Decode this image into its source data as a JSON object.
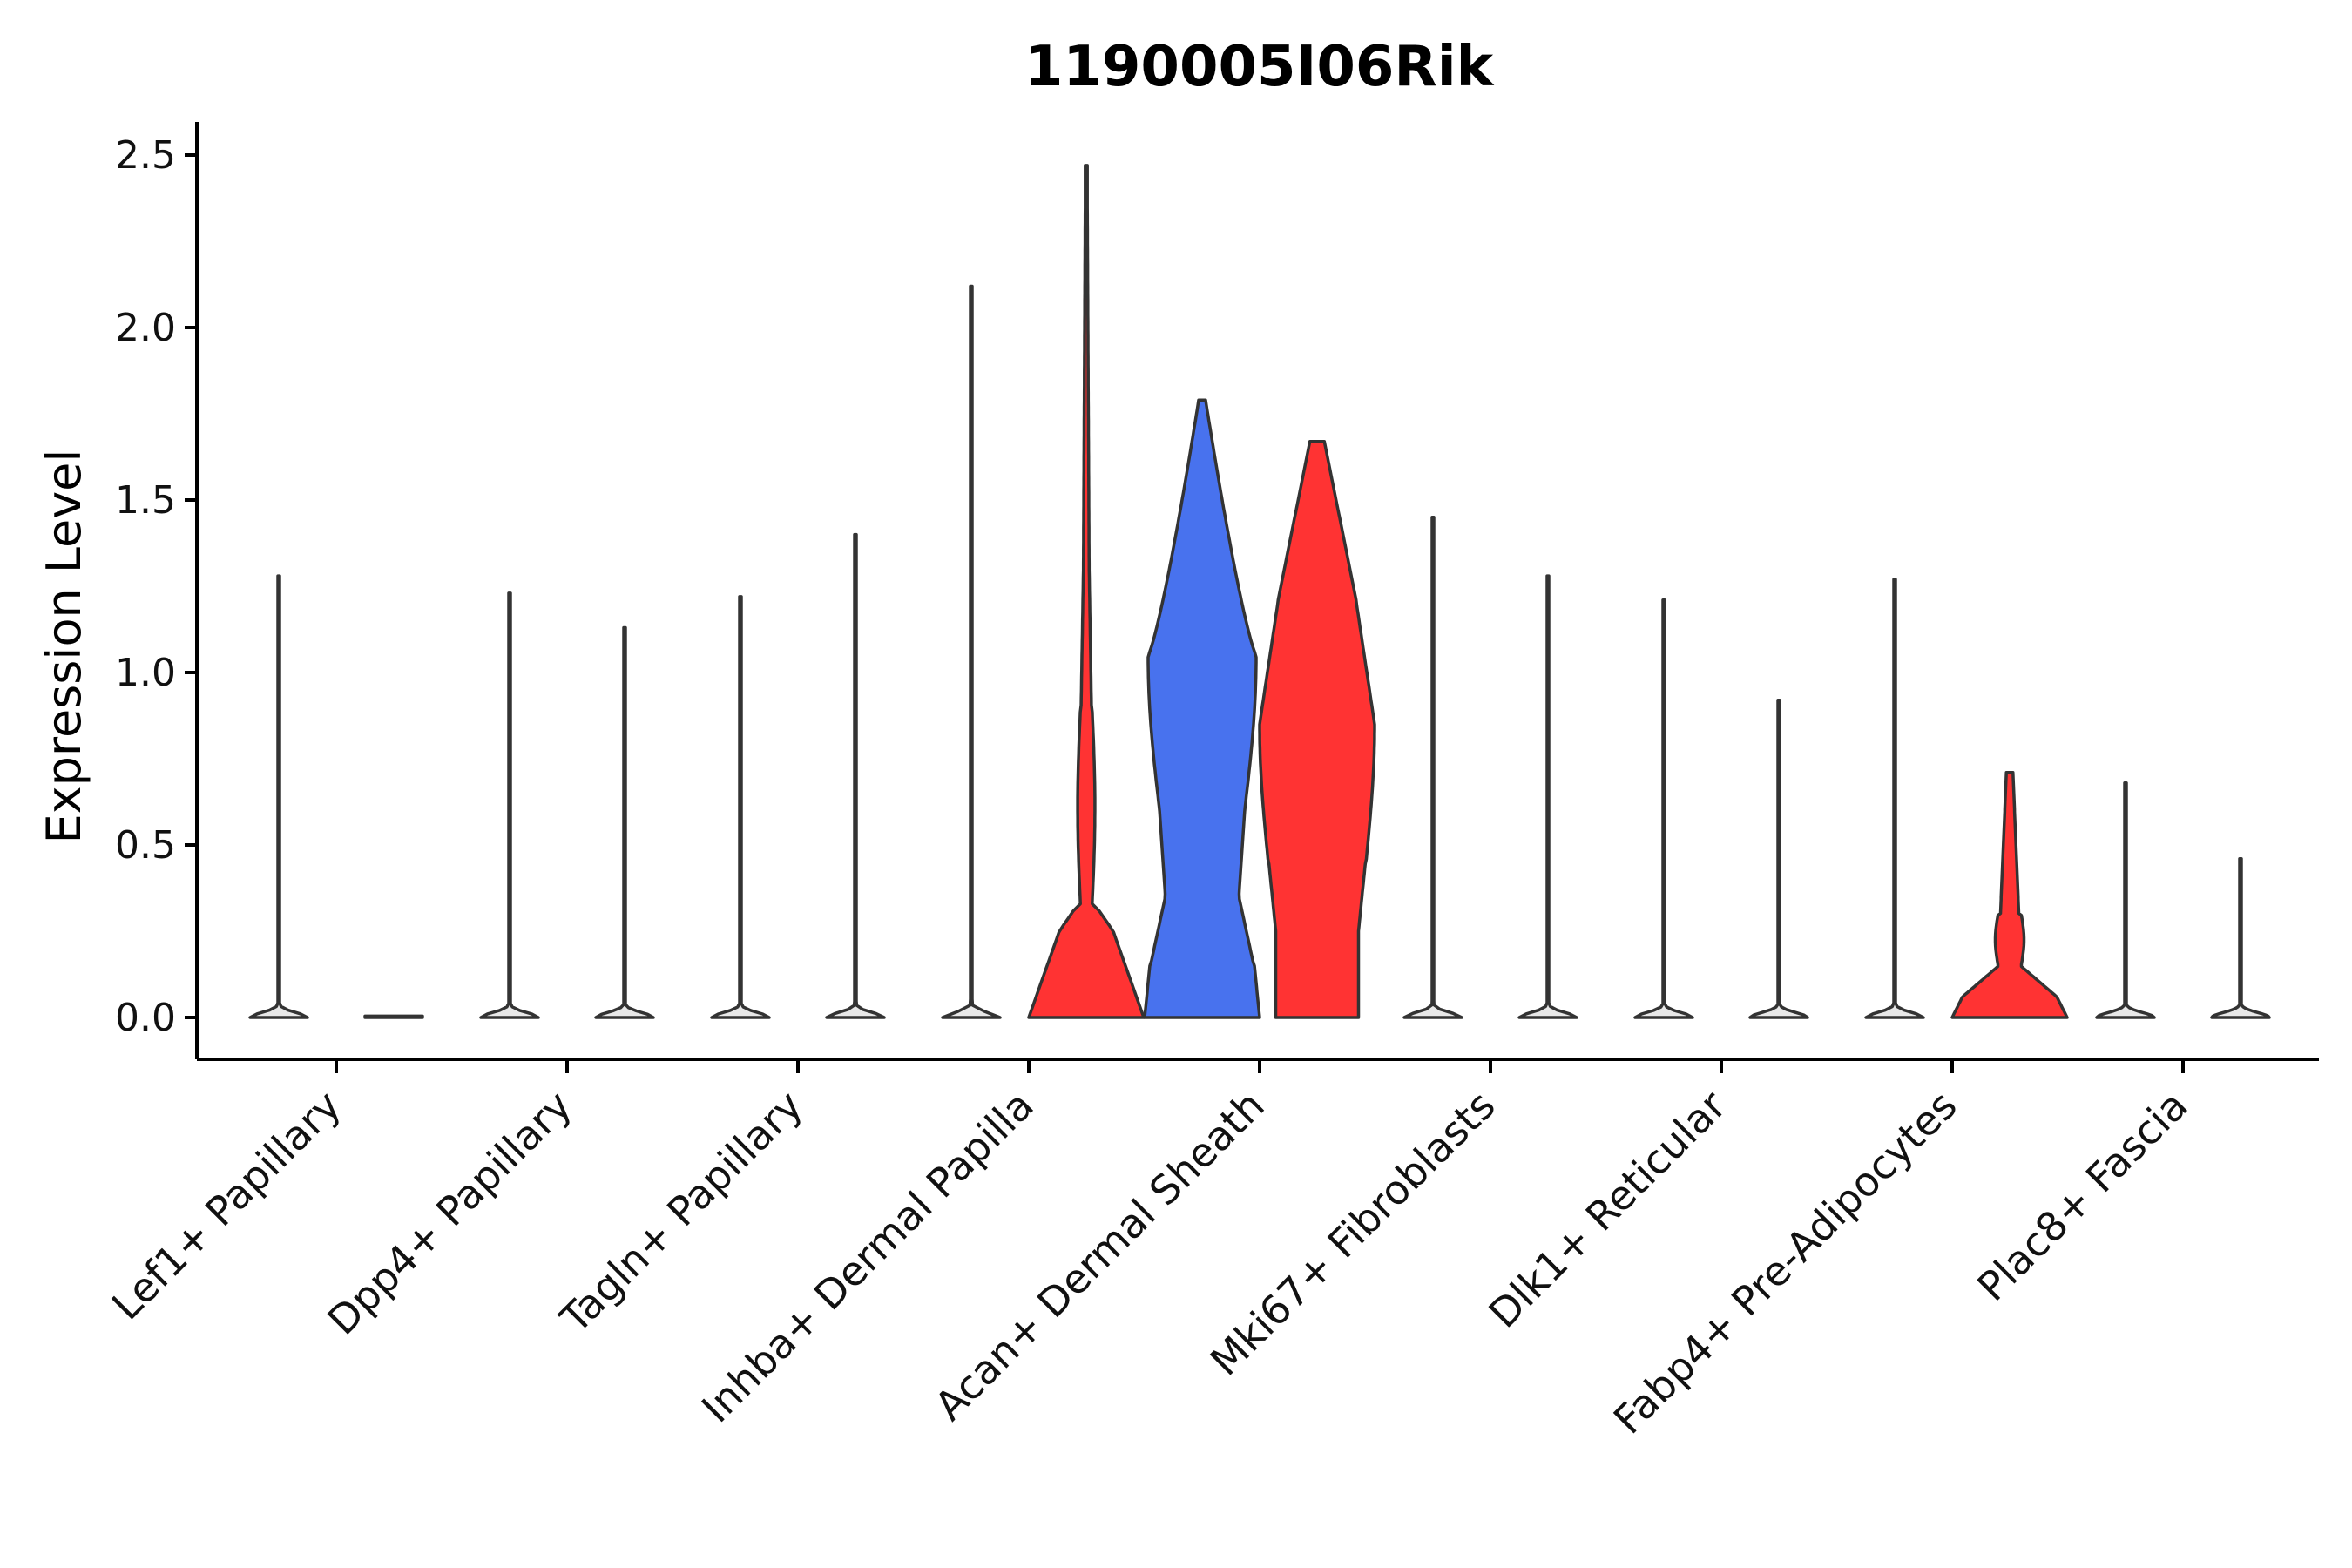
{
  "chart_data": {
    "type": "violin",
    "title": "1190005I06Rik",
    "xlabel": "",
    "ylabel": "Expression Level",
    "ylim": [
      -0.12,
      2.6
    ],
    "yticks": [
      "0.0",
      "0.5",
      "1.0",
      "1.5",
      "2.0",
      "2.5"
    ],
    "grid": false,
    "legend": "none",
    "categories": [
      "Lef1+ Papillary",
      "Dpp4+ Papillary",
      "Tagln+ Papillary",
      "Inhba+ Dermal Papilla",
      "Acan+ Dermal Sheath",
      "Mki67+ Fibroblasts",
      "Dlk1+ Reticular",
      "Fabp4+ Pre-Adipocytes",
      "Plac8+ Fascia"
    ],
    "series": [
      {
        "color": "#e8e8e8",
        "max_values": [
          1.28,
          1.23,
          1.22,
          2.12,
          1.79,
          1.45,
          1.21,
          1.27,
          0.68
        ]
      },
      {
        "color": "#ff3333",
        "max_values": [
          0,
          1.13,
          1.4,
          2.47,
          1.67,
          1.28,
          0.92,
          0.71,
          0.46
        ]
      }
    ],
    "violin_colors": [
      [
        "#e8e8e8",
        "#e8e8e8"
      ],
      [
        "#e8e8e8",
        "#e8e8e8"
      ],
      [
        "#e8e8e8",
        "#e8e8e8"
      ],
      [
        "#e8e8e8",
        "#ff3333"
      ],
      [
        "#4872ee",
        "#ff3333"
      ],
      [
        "#e8e8e8",
        "#e8e8e8"
      ],
      [
        "#e8e8e8",
        "#e8e8e8"
      ],
      [
        "#e8e8e8",
        "#ff3333"
      ],
      [
        "#e8e8e8",
        "#e8e8e8"
      ]
    ]
  }
}
